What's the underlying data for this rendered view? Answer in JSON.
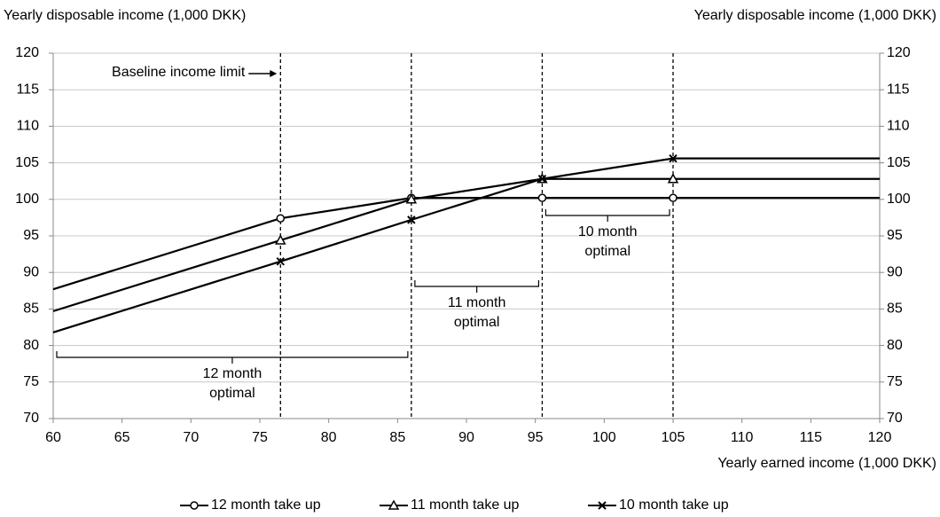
{
  "chart_data": {
    "type": "line",
    "y_label": "Yearly disposable income (1,000 DKK)",
    "y2_label": "Yearly disposable income (1,000 DKK)",
    "x_label": "Yearly earned income (1,000 DKK)",
    "x": [
      60,
      76.5,
      86,
      95.5,
      105,
      120
    ],
    "series": [
      {
        "name": "12 month take up",
        "color": "#000000",
        "marker": "circle",
        "values": [
          87.7,
          97.4,
          100.2,
          100.2,
          100.2,
          100.2
        ]
      },
      {
        "name": "11 month take up",
        "color": "#000000",
        "marker": "triangle",
        "values": [
          84.7,
          94.4,
          100.0,
          102.8,
          102.8,
          102.8
        ]
      },
      {
        "name": "10 month take up",
        "color": "#000000",
        "marker": "x",
        "values": [
          81.8,
          91.5,
          97.2,
          102.8,
          105.6,
          105.6
        ]
      }
    ],
    "xlim": [
      60,
      120
    ],
    "xticks": [
      60,
      65,
      70,
      75,
      80,
      85,
      90,
      95,
      100,
      105,
      110,
      115,
      120
    ],
    "ylim": [
      70,
      120
    ],
    "yticks": [
      70,
      75,
      80,
      85,
      90,
      95,
      100,
      105,
      110,
      115,
      120
    ],
    "y2lim": [
      70,
      120
    ],
    "y2ticks": [
      70,
      75,
      80,
      85,
      90,
      95,
      100,
      105,
      110,
      115,
      120
    ],
    "grid": true,
    "vlines": [
      76.5,
      86,
      95.5,
      105
    ],
    "baseline_note": "Baseline income limit",
    "brackets": [
      {
        "text": [
          "12 month",
          "optimal"
        ]
      },
      {
        "text": [
          "11 month",
          "optimal"
        ]
      },
      {
        "text": [
          "10 month",
          "optimal"
        ]
      }
    ],
    "legend": "bottom"
  }
}
